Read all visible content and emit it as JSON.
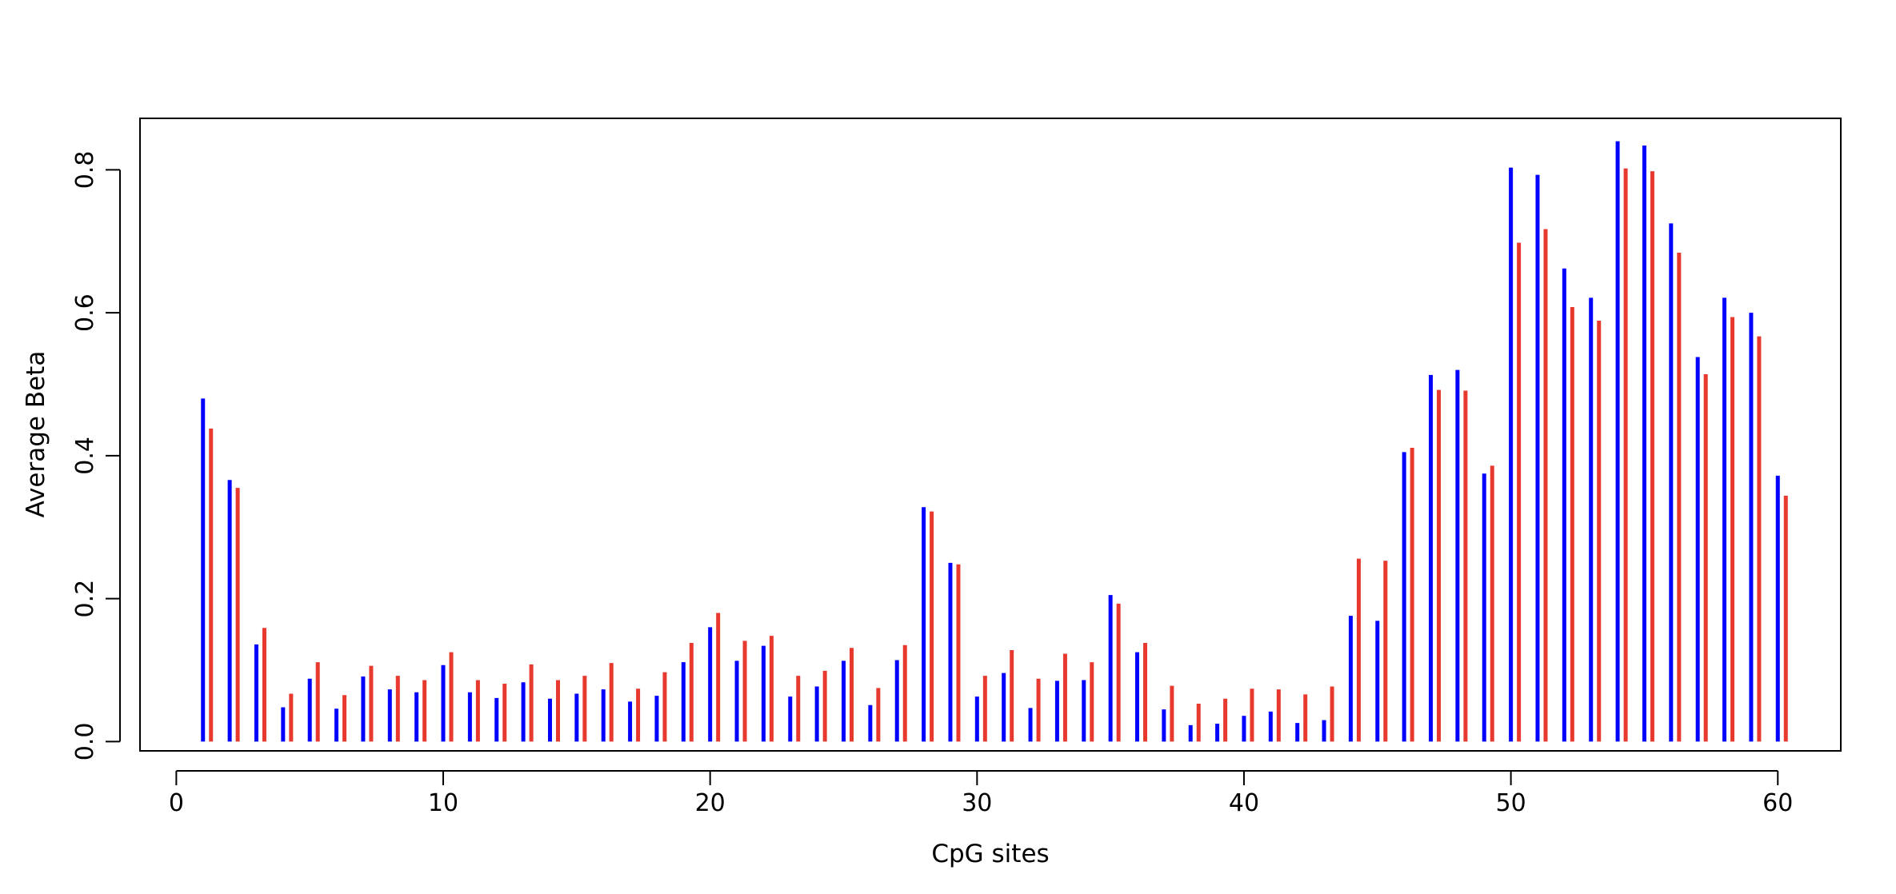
{
  "chart_data": {
    "type": "bar",
    "xlabel": "CpG sites",
    "ylabel": "Average Beta",
    "xlim": [
      -1.36,
      62.36
    ],
    "ylim": [
      -0.013,
      0.872
    ],
    "xticks": [
      0,
      10,
      20,
      30,
      40,
      50,
      60
    ],
    "yticks": [
      0.0,
      0.2,
      0.4,
      0.6,
      0.8
    ],
    "ytick_labels": [
      "0.0",
      "0.2",
      "0.4",
      "0.6",
      "0.8"
    ],
    "x": [
      1,
      2,
      3,
      4,
      5,
      6,
      7,
      8,
      9,
      10,
      11,
      12,
      13,
      14,
      15,
      16,
      17,
      18,
      19,
      20,
      21,
      22,
      23,
      24,
      25,
      26,
      27,
      28,
      29,
      30,
      31,
      32,
      33,
      34,
      35,
      36,
      37,
      38,
      39,
      40,
      41,
      42,
      43,
      44,
      45,
      46,
      47,
      48,
      49,
      50,
      51,
      52,
      53,
      54,
      55,
      56,
      57,
      58,
      59,
      60
    ],
    "grid": false,
    "series": [
      {
        "color": "#0000FF",
        "values": [
          0.48,
          0.366,
          0.136,
          0.048,
          0.088,
          0.046,
          0.091,
          0.073,
          0.069,
          0.107,
          0.069,
          0.061,
          0.083,
          0.06,
          0.067,
          0.073,
          0.056,
          0.064,
          0.111,
          0.16,
          0.113,
          0.134,
          0.063,
          0.077,
          0.113,
          0.051,
          0.114,
          0.328,
          0.25,
          0.063,
          0.096,
          0.047,
          0.085,
          0.086,
          0.205,
          0.125,
          0.045,
          0.023,
          0.025,
          0.036,
          0.042,
          0.026,
          0.03,
          0.176,
          0.169,
          0.405,
          0.513,
          0.52,
          0.375,
          0.803,
          0.793,
          0.662,
          0.621,
          0.84,
          0.834,
          0.725,
          0.538,
          0.621,
          0.6,
          0.372
        ]
      },
      {
        "color": "#E8392F",
        "values": [
          0.438,
          0.355,
          0.159,
          0.067,
          0.111,
          0.065,
          0.106,
          0.092,
          0.086,
          0.125,
          0.086,
          0.081,
          0.108,
          0.086,
          0.092,
          0.11,
          0.074,
          0.097,
          0.138,
          0.18,
          0.141,
          0.148,
          0.092,
          0.099,
          0.131,
          0.075,
          0.135,
          0.322,
          0.248,
          0.092,
          0.128,
          0.088,
          0.123,
          0.111,
          0.193,
          0.138,
          0.078,
          0.053,
          0.06,
          0.074,
          0.073,
          0.066,
          0.077,
          0.256,
          0.253,
          0.411,
          0.492,
          0.491,
          0.386,
          0.698,
          0.717,
          0.608,
          0.589,
          0.802,
          0.798,
          0.684,
          0.514,
          0.594,
          0.567,
          0.344
        ]
      }
    ]
  }
}
